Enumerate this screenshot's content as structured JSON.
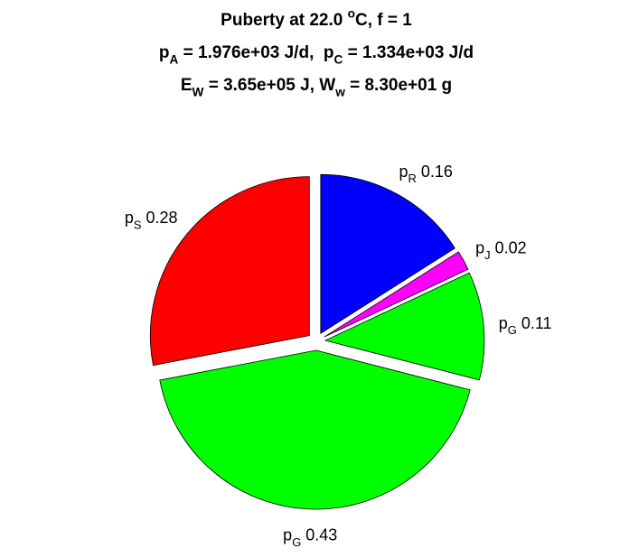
{
  "chart_data": {
    "type": "pie",
    "title": [
      [
        {
          "text": "Puberty at 22.0 "
        },
        {
          "text": "o",
          "shift": "sup"
        },
        {
          "text": "C, f = 1"
        }
      ],
      [
        {
          "text": "p"
        },
        {
          "text": "A",
          "shift": "sub"
        },
        {
          "text": " = 1.976e+03 J/d,  p"
        },
        {
          "text": "C",
          "shift": "sub"
        },
        {
          "text": " = 1.334e+03 J/d"
        }
      ],
      [
        {
          "text": "E"
        },
        {
          "text": "W",
          "shift": "sub"
        },
        {
          "text": " = 3.65e+05 J, W"
        },
        {
          "text": "w",
          "shift": "sub"
        },
        {
          "text": " = 8.30e+01 g"
        }
      ]
    ],
    "categories": [
      [
        {
          "text": "p"
        },
        {
          "text": "R",
          "shift": "sub"
        }
      ],
      [
        {
          "text": "p"
        },
        {
          "text": "J",
          "shift": "sub"
        }
      ],
      [
        {
          "text": "p"
        },
        {
          "text": "G",
          "shift": "sub"
        }
      ],
      [
        {
          "text": "p"
        },
        {
          "text": "G",
          "shift": "sub"
        }
      ],
      [
        {
          "text": "p"
        },
        {
          "text": "S",
          "shift": "sub"
        }
      ]
    ],
    "values": [
      0.16,
      0.02,
      0.11,
      0.43,
      0.28
    ],
    "colors": [
      "#0000ff",
      "#ff00ff",
      "#00ff00",
      "#00ff00",
      "#ff0000"
    ],
    "exploded": true
  }
}
